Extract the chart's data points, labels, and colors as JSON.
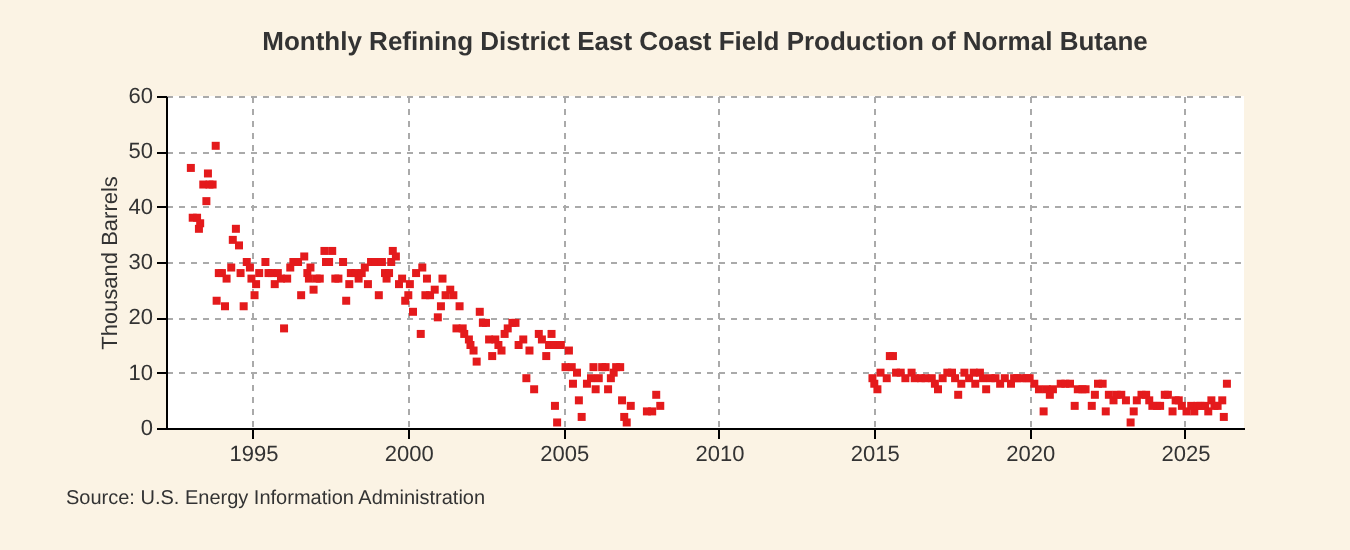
{
  "chart_data": {
    "type": "scatter",
    "title": "Monthly Refining District East Coast Field Production of Normal Butane",
    "ylabel": "Thousand Barrels",
    "annotations": [
      "Source: U.S. Energy Information Administration"
    ],
    "xlim": [
      1992.2,
      2026.9
    ],
    "xticks": [
      1995,
      2000,
      2005,
      2010,
      2015,
      2020,
      2025
    ],
    "ylim": [
      0,
      60
    ],
    "yticks": [
      0,
      10,
      20,
      30,
      40,
      50,
      60
    ],
    "grid": true,
    "legend": false,
    "marker": "square",
    "series": [
      {
        "color": "#e41a1c",
        "x": [
          1993.0,
          1993.06,
          1993.2,
          1993.26,
          1993.3,
          1993.4,
          1993.5,
          1993.55,
          1993.6,
          1993.7,
          1993.8,
          1993.83,
          1993.9,
          1994.0,
          1994.1,
          1994.15,
          1994.3,
          1994.35,
          1994.45,
          1994.55,
          1994.6,
          1994.7,
          1994.8,
          1994.9,
          1994.95,
          1995.05,
          1995.1,
          1995.2,
          1995.4,
          1995.5,
          1995.6,
          1995.7,
          1995.8,
          1995.9,
          1996.0,
          1996.1,
          1996.2,
          1996.3,
          1996.45,
          1996.55,
          1996.65,
          1996.75,
          1996.8,
          1996.85,
          1996.95,
          1997.05,
          1997.15,
          1997.3,
          1997.35,
          1997.45,
          1997.55,
          1997.65,
          1997.75,
          1997.9,
          1998.0,
          1998.1,
          1998.15,
          1998.3,
          1998.4,
          1998.5,
          1998.6,
          1998.7,
          1998.8,
          1998.95,
          1999.05,
          1999.15,
          1999.25,
          1999.3,
          1999.38,
          1999.45,
          1999.5,
          1999.6,
          1999.7,
          1999.8,
          1999.9,
          2000.0,
          2000.05,
          2000.15,
          2000.25,
          2000.4,
          2000.45,
          2000.55,
          2000.6,
          2000.7,
          2000.85,
          2000.95,
          2001.05,
          2001.1,
          2001.2,
          2001.35,
          2001.45,
          2001.55,
          2001.65,
          2001.75,
          2001.8,
          2001.95,
          2002.0,
          2002.1,
          2002.2,
          2002.3,
          2002.4,
          2002.5,
          2002.6,
          2002.7,
          2002.8,
          2002.9,
          2003.0,
          2003.1,
          2003.2,
          2003.35,
          2003.45,
          2003.55,
          2003.7,
          2003.8,
          2003.9,
          2004.05,
          2004.2,
          2004.3,
          2004.44,
          2004.53,
          2004.61,
          2004.7,
          2004.72,
          2004.79,
          2004.91,
          2005.06,
          2005.17,
          2005.26,
          2005.3,
          2005.43,
          2005.49,
          2005.58,
          2005.75,
          2005.88,
          2005.96,
          2006.03,
          2006.13,
          2006.24,
          2006.35,
          2006.43,
          2006.52,
          2006.61,
          2006.69,
          2006.82,
          2006.88,
          2006.95,
          2007.03,
          2007.16,
          2007.68,
          2007.85,
          2007.98,
          2008.11
        ],
        "values": [
          47,
          38,
          38,
          36,
          37,
          44,
          41,
          46,
          44,
          44,
          51,
          23,
          28,
          28,
          22,
          27,
          29,
          34,
          36,
          33,
          28,
          22,
          30,
          29,
          27,
          24,
          26,
          28,
          30,
          28,
          28,
          26,
          28,
          27,
          18,
          27,
          29,
          30,
          30,
          24,
          31,
          28,
          27,
          29,
          25,
          27,
          27,
          32,
          30,
          30,
          32,
          27,
          27,
          30,
          23,
          26,
          28,
          28,
          27,
          28,
          29,
          26,
          30,
          30,
          24,
          30,
          28,
          27,
          28,
          30,
          32,
          31,
          26,
          27,
          23,
          24,
          26,
          21,
          28,
          17,
          29,
          24,
          27,
          24,
          25,
          20,
          22,
          27,
          24,
          25,
          24,
          18,
          22,
          18,
          17,
          16,
          15,
          14,
          12,
          21,
          19,
          19,
          16,
          13,
          16,
          15,
          14,
          17,
          18,
          19,
          19,
          15,
          16,
          9,
          14,
          7,
          17,
          16,
          13,
          15,
          17,
          15,
          4,
          1,
          15,
          11,
          14,
          11,
          8,
          10,
          5,
          2,
          8,
          9,
          11,
          7,
          9,
          11,
          11,
          7,
          9,
          10,
          11,
          11,
          5,
          2,
          1,
          4,
          3,
          3,
          6,
          4
        ]
      },
      {
        "color": "#e41a1c",
        "x": [
          2014.94,
          2015.0,
          2015.1,
          2015.2,
          2015.4,
          2015.5,
          2015.6,
          2015.7,
          2015.85,
          2016.0,
          2016.2,
          2016.3,
          2016.5,
          2016.65,
          2016.85,
          2016.95,
          2017.05,
          2017.2,
          2017.35,
          2017.5,
          2017.6,
          2017.7,
          2017.8,
          2017.9,
          2018.05,
          2018.2,
          2018.25,
          2018.4,
          2018.5,
          2018.6,
          2018.75,
          2018.9,
          2019.05,
          2019.2,
          2019.4,
          2019.5,
          2019.6,
          2019.75,
          2019.9,
          2020.0,
          2020.15,
          2020.3,
          2020.45,
          2020.55,
          2020.65,
          2020.75,
          2021.0,
          2021.15,
          2021.3,
          2021.45,
          2021.55,
          2021.7,
          2021.8,
          2022.0,
          2022.1,
          2022.2,
          2022.35,
          2022.45,
          2022.55,
          2022.7,
          2022.8,
          2022.95,
          2023.1,
          2023.25,
          2023.35,
          2023.45,
          2023.6,
          2023.75,
          2023.85,
          2023.95,
          2024.1,
          2024.2,
          2024.35,
          2024.45,
          2024.6,
          2024.7,
          2024.8,
          2024.9,
          2025.05,
          2025.2,
          2025.3,
          2025.4,
          2025.5,
          2025.65,
          2025.75,
          2025.85,
          2025.95,
          2026.05,
          2026.2,
          2026.25,
          2026.35
        ],
        "values": [
          9,
          8,
          7,
          10,
          9,
          13,
          13,
          10,
          10,
          9,
          10,
          9,
          9,
          9,
          9,
          8,
          7,
          9,
          10,
          10,
          9,
          6,
          8,
          10,
          9,
          10,
          8,
          10,
          9,
          7,
          9,
          9,
          8,
          9,
          8,
          9,
          9,
          9,
          9,
          9,
          8,
          7,
          3,
          7,
          6,
          7,
          8,
          8,
          8,
          4,
          7,
          7,
          7,
          4,
          6,
          8,
          8,
          3,
          6,
          5,
          6,
          6,
          5,
          1,
          3,
          5,
          6,
          6,
          5,
          4,
          4,
          4,
          6,
          6,
          3,
          5,
          5,
          4,
          3,
          4,
          3,
          4,
          4,
          4,
          3,
          5,
          4,
          4,
          5,
          2,
          8
        ]
      }
    ]
  }
}
